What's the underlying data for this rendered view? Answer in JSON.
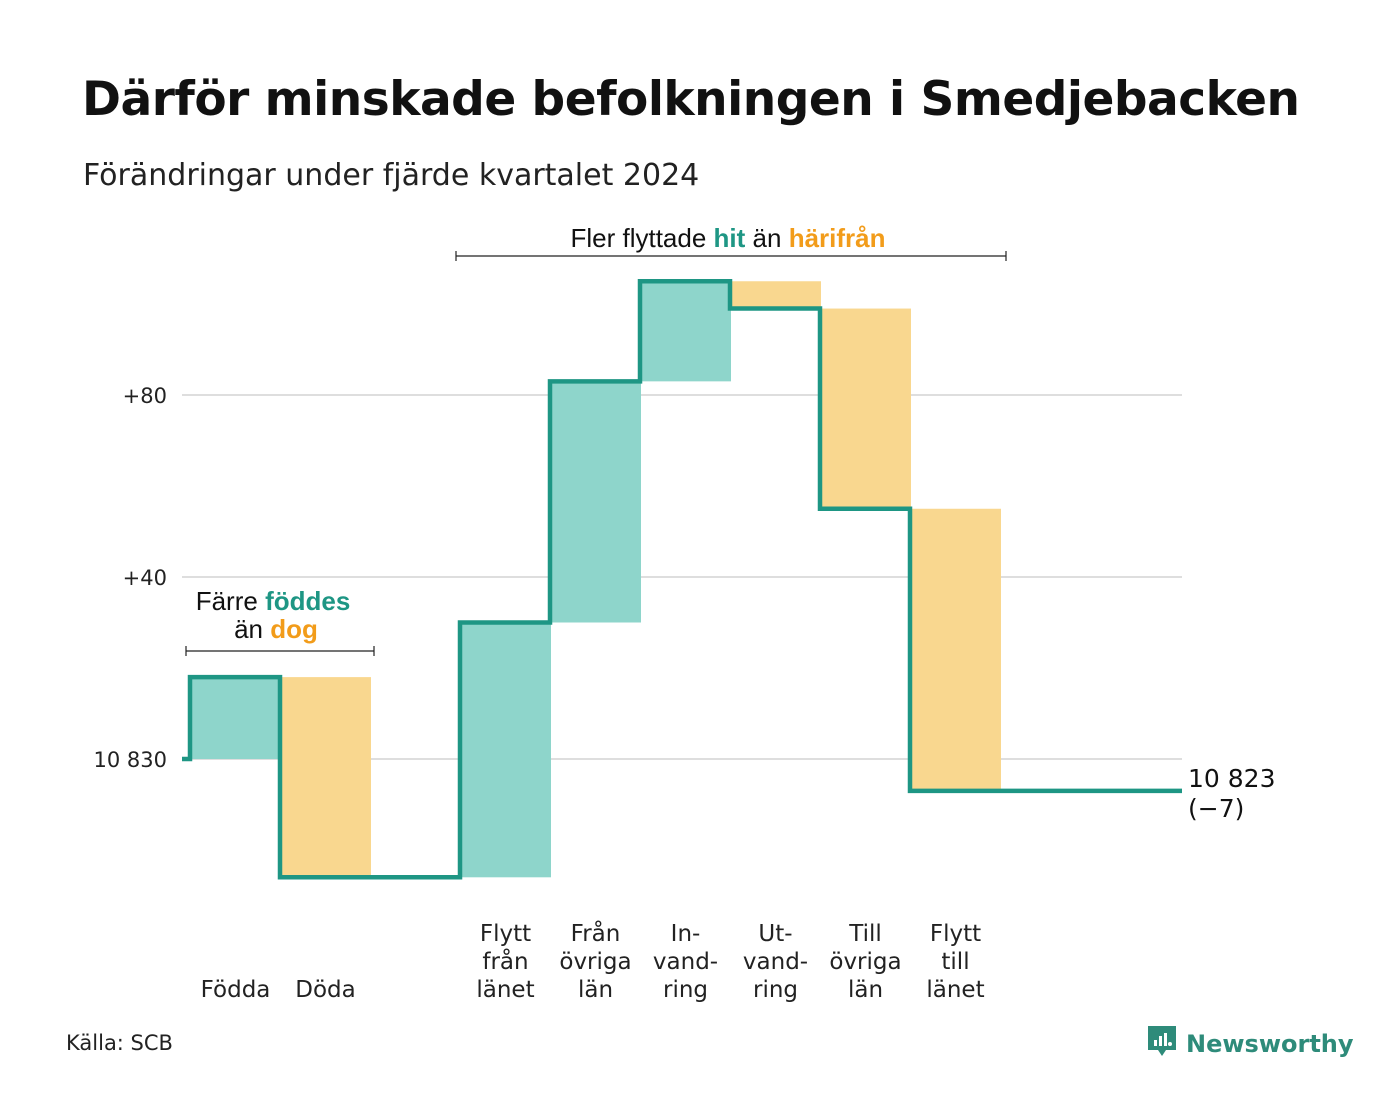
{
  "title": "Därför minskade befolkningen i Smedjebacken",
  "subtitle": "Förändringar under fjärde kvartalet 2024",
  "source": "Källa: SCB",
  "brand": "Newsworthy",
  "colors": {
    "increase_fill": "#8ed5cb",
    "decrease_fill": "#f9d78f",
    "line": "#1e9684",
    "teal_text": "#1e9684",
    "orange_text": "#f29c1a",
    "grid": "#dedede"
  },
  "annotations": {
    "births_deaths": {
      "line1_prefix": "Färre",
      "line1_highlight": "föddes",
      "line2_prefix": "än",
      "line2_highlight": "dog"
    },
    "migration": {
      "prefix": "Fler flyttade",
      "highlight1": "hit",
      "middle": "än",
      "highlight2": "härifrån"
    }
  },
  "chart_data": {
    "type": "waterfall",
    "start_value": 10830,
    "start_label": "10 830",
    "end_value": 10823,
    "end_label": "10 823",
    "end_change_label": "(−7)",
    "y_tick_labels": [
      "10 830",
      "+40",
      "+80"
    ],
    "y_ticks_relative": [
      0,
      40,
      80
    ],
    "ylim_relative": [
      -30,
      110
    ],
    "grid": true,
    "steps": [
      {
        "category": "Födda",
        "lines": [
          "Födda"
        ],
        "value": 18,
        "direction": "increase"
      },
      {
        "category": "Döda",
        "lines": [
          "Döda"
        ],
        "value": -44,
        "direction": "decrease"
      },
      {
        "category": "Flytt från länet",
        "lines": [
          "Flytt",
          "från",
          "länet"
        ],
        "value": 56,
        "direction": "increase"
      },
      {
        "category": "Från övriga län",
        "lines": [
          "Från",
          "övriga",
          "län"
        ],
        "value": 53,
        "direction": "increase"
      },
      {
        "category": "Invandring",
        "lines": [
          "In-",
          "vand-",
          "ring"
        ],
        "value": 22,
        "direction": "increase"
      },
      {
        "category": "Utvandring",
        "lines": [
          "Ut-",
          "vand-",
          "ring"
        ],
        "value": -6,
        "direction": "decrease"
      },
      {
        "category": "Till övriga län",
        "lines": [
          "Till",
          "övriga",
          "län"
        ],
        "value": -44,
        "direction": "decrease"
      },
      {
        "category": "Flytt till länet",
        "lines": [
          "Flytt",
          "till",
          "länet"
        ],
        "value": -62,
        "direction": "decrease"
      }
    ]
  }
}
